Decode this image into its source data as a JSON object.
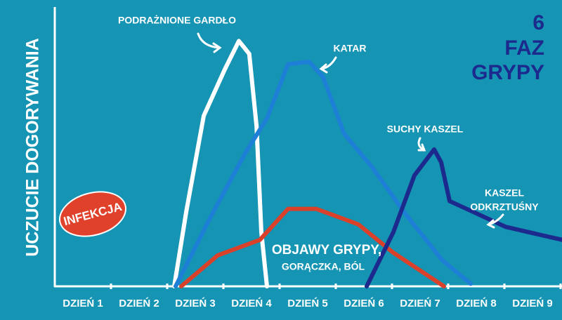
{
  "chart_data": {
    "type": "line",
    "title_lines": [
      "6",
      "FAZ",
      "GRYPY"
    ],
    "y_label": "UCZUCIE DOGORYWANIA",
    "categories": [
      "DZIEŃ 1",
      "DZIEŃ 2",
      "DZIEŃ 3",
      "DZIEŃ 4",
      "DZIEŃ 5",
      "DZIEŃ 6",
      "DZIEŃ 7",
      "DZIEŃ 8",
      "DZIEŃ 9"
    ],
    "xlim": [
      0.5,
      9.525
    ],
    "xticks": [
      1.5,
      2.5,
      3.5,
      4.5,
      5.5,
      6.5,
      7.5,
      8.5,
      9.5
    ],
    "ylim": [
      0,
      100
    ],
    "series": [
      {
        "name": "PODRAŻNIONE GARDŁO",
        "color": "#ffffff",
        "x": [
          2.625,
          2.84,
          3.15,
          3.525,
          3.775,
          3.96,
          4.09,
          4.175,
          4.275
        ],
        "values": [
          0,
          29,
          66,
          84,
          95,
          90,
          62,
          21,
          0
        ]
      },
      {
        "name": "KATAR",
        "color": "#1e7fd6",
        "x": [
          2.65,
          3.275,
          3.9,
          4.275,
          4.65,
          5.025,
          5.275,
          5.65,
          6.15,
          6.775,
          7.4,
          7.9
        ],
        "values": [
          0,
          27,
          52,
          65,
          86,
          87,
          81,
          59,
          46,
          27,
          10,
          1
        ]
      },
      {
        "name": "OBJAWY GRYPY,",
        "color": "#d9412b",
        "x": [
          2.75,
          3.4,
          4.15,
          4.65,
          5.15,
          5.9,
          6.525,
          7.425
        ],
        "values": [
          0,
          12,
          18,
          30,
          30,
          24,
          13,
          0
        ]
      },
      {
        "name": "SUCHY KASZEL",
        "color": "#1b2a8c",
        "x": [
          6.05,
          6.525,
          6.9,
          7.25,
          7.375,
          7.525,
          8.025,
          8.525,
          9.525
        ],
        "values": [
          0,
          21,
          43,
          53,
          48,
          33,
          28,
          23,
          18
        ]
      }
    ],
    "annotations": [
      "GORĄCZKA, BÓL",
      "KASZEL",
      "ODKRZTUŚNY",
      "INFEKCJA"
    ]
  }
}
